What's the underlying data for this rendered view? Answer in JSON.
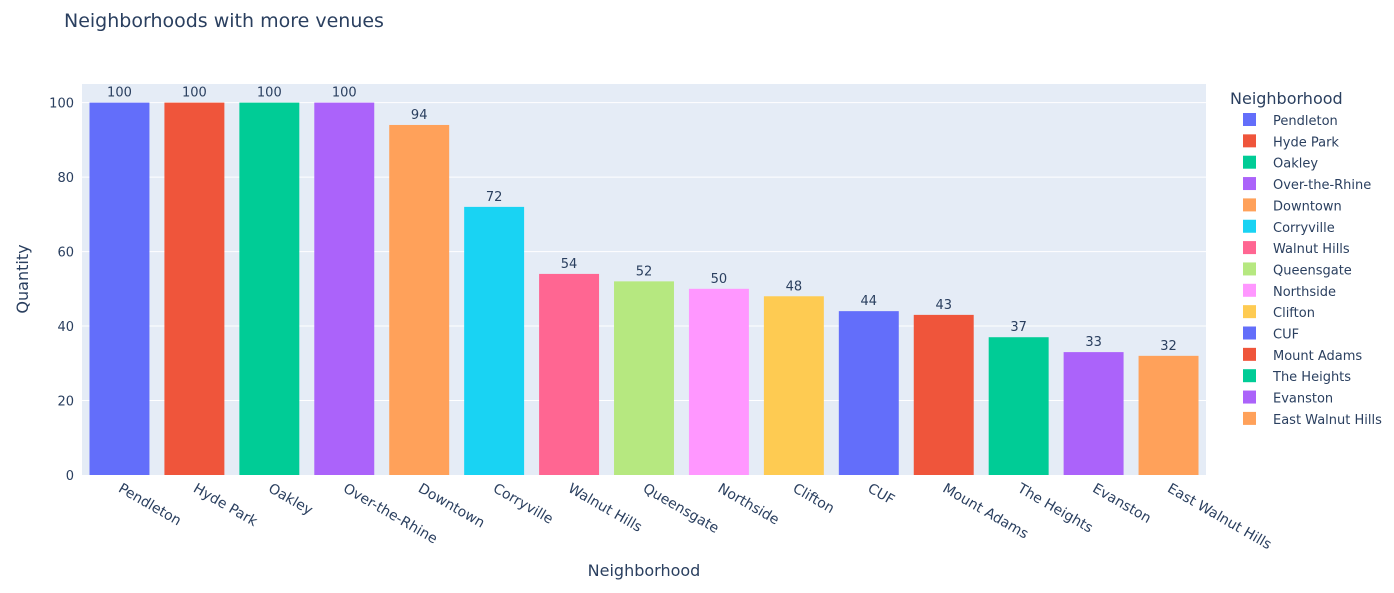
{
  "chart_data": {
    "type": "bar",
    "title": "Neighborhoods with more venues",
    "xlabel": "Neighborhood",
    "ylabel": "Quantity",
    "legend_title": "Neighborhood",
    "legend_position": "right",
    "grid": true,
    "ylim": [
      0,
      105
    ],
    "yticks": [
      0,
      20,
      40,
      60,
      80,
      100
    ],
    "categories": [
      "Pendleton",
      "Hyde Park",
      "Oakley",
      "Over-the-Rhine",
      "Downtown",
      "Corryville",
      "Walnut Hills",
      "Queensgate",
      "Northside",
      "Clifton",
      "CUF",
      "Mount Adams",
      "The Heights",
      "Evanston",
      "East Walnut Hills"
    ],
    "values": [
      100,
      100,
      100,
      100,
      94,
      72,
      54,
      52,
      50,
      48,
      44,
      43,
      37,
      33,
      32
    ],
    "colors": [
      "#636efa",
      "#EF553B",
      "#00cc96",
      "#ab63fa",
      "#FFA15A",
      "#19d3f3",
      "#FF6692",
      "#B6E880",
      "#FF97FF",
      "#FECB52",
      "#636efa",
      "#EF553B",
      "#00cc96",
      "#ab63fa",
      "#FFA15A"
    ]
  }
}
